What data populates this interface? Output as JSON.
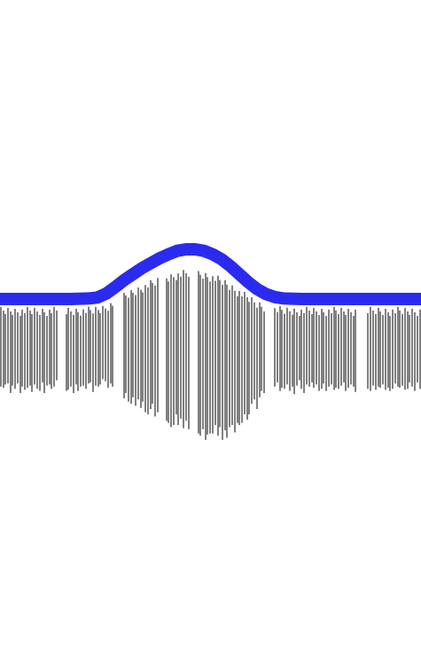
{
  "chart_data": {
    "type": "line",
    "title": "",
    "xlabel": "",
    "ylabel": "",
    "ylim": [
      0,
      1
    ],
    "axes_visible": false,
    "grid": false,
    "colors": {
      "envelope": "#2b2bf0",
      "spectrum": "#000000",
      "background": "#ffffff"
    },
    "series": [
      {
        "role": "envelope",
        "x": [
          0,
          20,
          40,
          60,
          80,
          100,
          110,
          120,
          130,
          140,
          150,
          160,
          170,
          180,
          190,
          200,
          210,
          220,
          230,
          240,
          250,
          260,
          270,
          280,
          290,
          300,
          310,
          320,
          340,
          360,
          380,
          400,
          420,
          440,
          460,
          475
        ],
        "values": [
          0.0,
          0.0,
          0.0,
          0.0,
          0.0,
          0.01,
          0.03,
          0.11,
          0.24,
          0.38,
          0.5,
          0.62,
          0.72,
          0.82,
          0.9,
          0.97,
          1.0,
          1.0,
          0.97,
          0.9,
          0.8,
          0.66,
          0.5,
          0.34,
          0.2,
          0.1,
          0.04,
          0.01,
          0.0,
          0.0,
          0.0,
          0.0,
          0.0,
          0.0,
          0.0,
          0.0
        ]
      },
      {
        "role": "spectrum",
        "x": [
          1,
          4,
          6,
          9,
          12,
          14,
          17,
          20,
          23,
          25,
          28,
          31,
          34,
          36,
          39,
          42,
          45,
          48,
          50,
          53,
          56,
          58,
          61,
          64,
          75,
          77,
          80,
          83,
          86,
          88,
          91,
          94,
          97,
          100,
          102,
          105,
          108,
          111,
          113,
          116,
          119,
          122,
          125,
          127,
          140,
          142,
          145,
          148,
          150,
          153,
          156,
          159,
          161,
          164,
          167,
          170,
          172,
          175,
          178,
          188,
          190,
          193,
          196,
          199,
          201,
          204,
          207,
          210,
          213,
          224,
          226,
          229,
          232,
          234,
          237,
          240,
          243,
          246,
          248,
          251,
          254,
          256,
          259,
          262,
          265,
          268,
          270,
          273,
          276,
          279,
          281,
          284,
          287,
          290,
          293,
          295,
          298,
          310,
          313,
          316,
          318,
          321,
          324,
          327,
          330,
          332,
          335,
          338,
          340,
          343,
          346,
          349,
          352,
          354,
          357,
          360,
          363,
          365,
          368,
          371,
          374,
          377,
          379,
          382,
          385,
          388,
          390,
          393,
          396,
          399,
          401,
          415,
          418,
          421,
          424,
          427,
          429,
          432,
          435,
          438,
          440,
          443,
          446,
          449,
          451,
          454,
          457,
          460,
          462,
          465,
          468,
          471,
          474
        ],
        "values": [
          0.34,
          0.35,
          0.32,
          0.31,
          0.4,
          0.33,
          0.36,
          0.31,
          0.4,
          0.34,
          0.37,
          0.35,
          0.33,
          0.39,
          0.32,
          0.36,
          0.38,
          0.3,
          0.4,
          0.33,
          0.32,
          0.36,
          0.34,
          0.28,
          0.38,
          0.37,
          0.34,
          0.4,
          0.32,
          0.38,
          0.34,
          0.33,
          0.36,
          0.31,
          0.3,
          0.39,
          0.33,
          0.34,
          0.32,
          0.27,
          0.29,
          0.35,
          0.31,
          0.34,
          0.45,
          0.4,
          0.48,
          0.5,
          0.44,
          0.52,
          0.46,
          0.54,
          0.48,
          0.58,
          0.6,
          0.55,
          0.5,
          0.62,
          0.58,
          0.66,
          0.68,
          0.72,
          0.7,
          0.6,
          0.7,
          0.64,
          0.73,
          0.66,
          0.74,
          0.78,
          0.8,
          0.74,
          0.84,
          0.79,
          0.78,
          0.78,
          0.7,
          0.8,
          0.72,
          0.84,
          0.75,
          0.82,
          0.72,
          0.7,
          0.77,
          0.68,
          0.7,
          0.68,
          0.6,
          0.65,
          0.6,
          0.5,
          0.46,
          0.55,
          0.44,
          0.38,
          0.4,
          0.34,
          0.3,
          0.38,
          0.35,
          0.36,
          0.32,
          0.38,
          0.34,
          0.41,
          0.33,
          0.28,
          0.36,
          0.4,
          0.32,
          0.34,
          0.3,
          0.35,
          0.32,
          0.38,
          0.36,
          0.31,
          0.38,
          0.34,
          0.32,
          0.37,
          0.35,
          0.36,
          0.33,
          0.3,
          0.38,
          0.35,
          0.32,
          0.34,
          0.39,
          0.36,
          0.38,
          0.33,
          0.37,
          0.34,
          0.35,
          0.32,
          0.37,
          0.35,
          0.38,
          0.36,
          0.31,
          0.34,
          0.35,
          0.33,
          0.37,
          0.36,
          0.3,
          0.34,
          0.38,
          0.3,
          0.36
        ]
      }
    ]
  }
}
